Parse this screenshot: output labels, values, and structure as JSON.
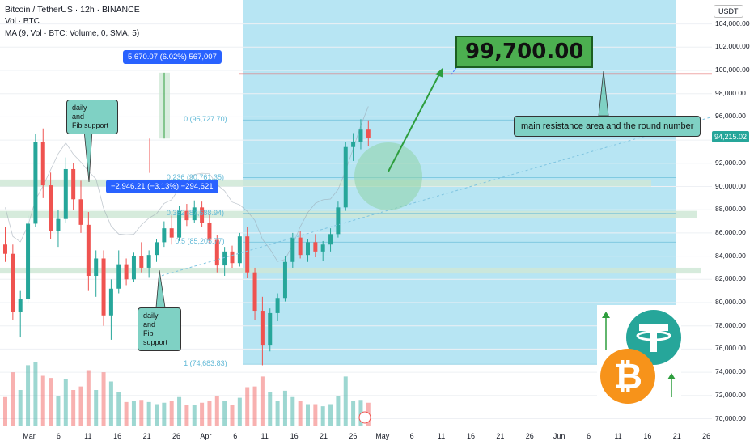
{
  "header": {
    "title": "Bitcoin / TetherUS · 12h · BINANCE",
    "volume": "Vol · BTC",
    "ma": "MA (9, Vol · BTC: Volume, 0, SMA, 5)"
  },
  "price_axis": {
    "currency": "USDT",
    "ticks": [
      "104,000.00",
      "102,000.00",
      "100,000.00",
      "98,000.00",
      "96,000.00",
      "94,000.00",
      "92,000.00",
      "90,000.00",
      "88,000.00",
      "86,000.00",
      "84,000.00",
      "82,000.00",
      "80,000.00",
      "78,000.00",
      "76,000.00",
      "74,000.00",
      "72,000.00",
      "70,000.00"
    ],
    "current_price": "94,215.02"
  },
  "time_axis": {
    "ticks": [
      "Mar",
      "6",
      "11",
      "16",
      "21",
      "26",
      "Apr",
      "6",
      "11",
      "16",
      "21",
      "26",
      "May",
      "6",
      "11",
      "16",
      "21",
      "26",
      "Jun",
      "6",
      "11",
      "16",
      "21",
      "26"
    ]
  },
  "annotations": {
    "target": "99,700.00",
    "resistance": "main resistance area and the round number",
    "daily_fib_top": "daily\nand\nFib support",
    "daily_fib_bottom": "daily\nand\nFib support",
    "measure_up": "5,670.07 (6.02%) 567,007",
    "measure_down": "−2,946.21 (−3.13%) −294,621"
  },
  "fib_levels": [
    {
      "label": "0 (95,727.70)",
      "price": 95727.7
    },
    {
      "label": "0.236 (90,761.35)",
      "price": 90761.35
    },
    {
      "label": "0.382 (87,688.94)",
      "price": 87688.94
    },
    {
      "label": "0.5 (85,205.77)",
      "price": 85205.77
    },
    {
      "label": "1 (74,683.83)",
      "price": 74683.83
    }
  ],
  "colors": {
    "up": "#26a69a",
    "down": "#ef5350",
    "projection": "#9fdcef",
    "zone": "#cfe8d6",
    "fib": "#5fb8d6",
    "arrow": "#2e9e3e",
    "resistance_line": "#e57373"
  },
  "chart_data": {
    "type": "candlestick",
    "title": "Bitcoin / TetherUS · 12h · BINANCE",
    "ylabel": "USDT",
    "ylim": [
      69500,
      105000
    ],
    "xlabel": "",
    "target": 99700,
    "candles": [
      [
        85000,
        86500,
        83500,
        84200
      ],
      [
        84200,
        85000,
        78500,
        79200
      ],
      [
        79200,
        81000,
        77000,
        80300
      ],
      [
        80300,
        87500,
        80000,
        86800
      ],
      [
        86800,
        94500,
        86500,
        93800
      ],
      [
        93800,
        95000,
        89000,
        90100
      ],
      [
        90100,
        91200,
        85500,
        86200
      ],
      [
        86200,
        88000,
        84800,
        87200
      ],
      [
        87200,
        92500,
        86900,
        91500
      ],
      [
        91500,
        92000,
        88000,
        88900
      ],
      [
        88900,
        90500,
        86000,
        86700
      ],
      [
        86700,
        87800,
        81000,
        82300
      ],
      [
        82300,
        84500,
        80500,
        83800
      ],
      [
        83800,
        84500,
        78000,
        78900
      ],
      [
        78900,
        82000,
        76800,
        81200
      ],
      [
        81200,
        84500,
        80800,
        83300
      ],
      [
        83300,
        83800,
        81500,
        82000
      ],
      [
        82000,
        84300,
        81800,
        84000
      ],
      [
        84000,
        85200,
        82600,
        83000
      ],
      [
        83000,
        84500,
        82200,
        84100
      ],
      [
        84100,
        85500,
        83500,
        85200
      ],
      [
        85200,
        87000,
        84800,
        86400
      ],
      [
        86400,
        87500,
        85000,
        85600
      ],
      [
        85600,
        88300,
        85300,
        87900
      ],
      [
        87900,
        88500,
        86600,
        87100
      ],
      [
        87100,
        88800,
        86900,
        88200
      ],
      [
        88200,
        88700,
        86500,
        86900
      ],
      [
        86900,
        87600,
        85100,
        85400
      ],
      [
        85400,
        85800,
        82600,
        83200
      ],
      [
        83200,
        84800,
        82300,
        84400
      ],
      [
        84400,
        84900,
        83000,
        83400
      ],
      [
        83400,
        86000,
        83100,
        85700
      ],
      [
        85700,
        86500,
        82100,
        82600
      ],
      [
        82600,
        83000,
        78500,
        79300
      ],
      [
        79300,
        80500,
        74600,
        76300
      ],
      [
        76300,
        79500,
        75800,
        79100
      ],
      [
        79100,
        80800,
        78400,
        80400
      ],
      [
        80400,
        84000,
        80100,
        83500
      ],
      [
        83500,
        86000,
        83000,
        85600
      ],
      [
        85600,
        86200,
        83800,
        84100
      ],
      [
        84100,
        85500,
        83500,
        85200
      ],
      [
        85200,
        85900,
        83900,
        84400
      ],
      [
        84400,
        85300,
        83600,
        85000
      ],
      [
        85000,
        86400,
        84400,
        85900
      ],
      [
        85900,
        88700,
        85600,
        88200
      ],
      [
        88200,
        93800,
        87900,
        93400
      ],
      [
        93400,
        94600,
        92200,
        93800
      ],
      [
        93800,
        95800,
        93200,
        94900
      ],
      [
        94900,
        95700,
        93500,
        94215
      ]
    ]
  }
}
